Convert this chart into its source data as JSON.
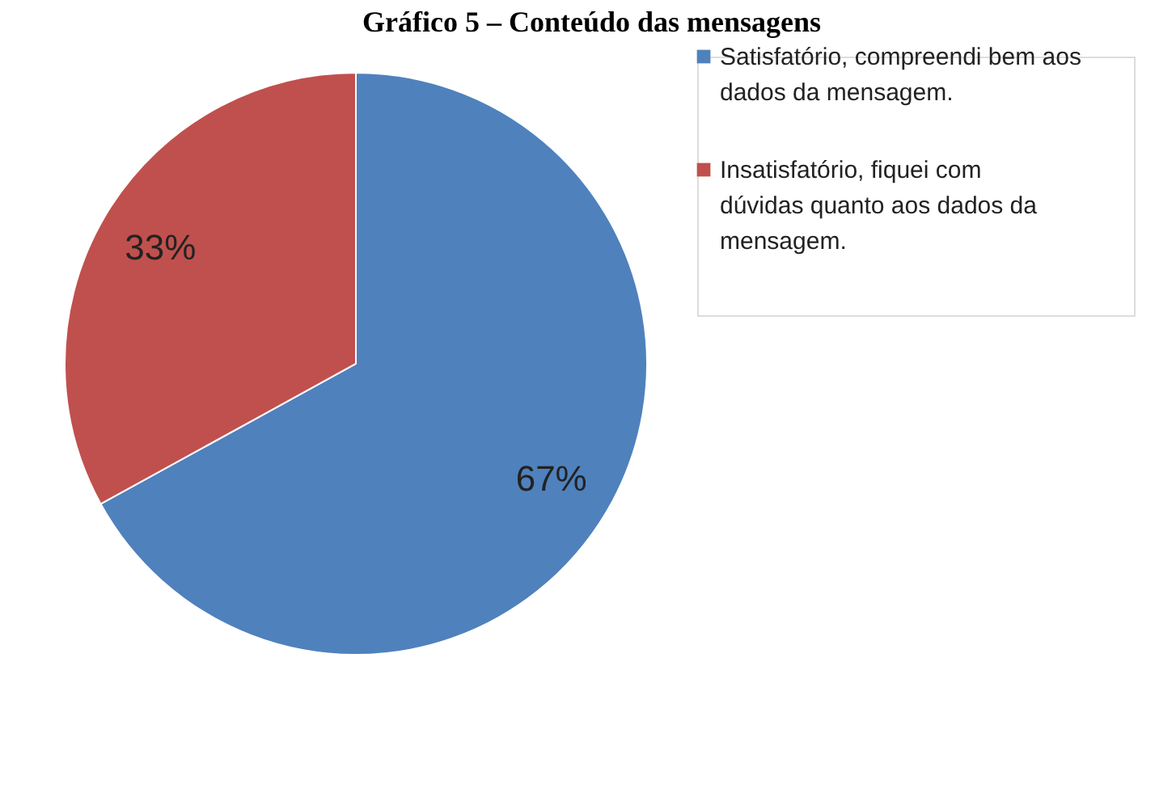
{
  "chart_data": {
    "type": "pie",
    "title": "Gráfico 5 – Conteúdo das mensagens",
    "categories": [
      "Satisfatório, compreendi bem aos dados da mensagem.",
      "Insatisfatório, fiquei com dúvidas quanto aos dados da mensagem."
    ],
    "values": [
      67,
      33
    ],
    "colors": [
      "#4f81bd",
      "#c0504d"
    ],
    "value_labels": [
      "67%",
      "33%"
    ],
    "legend": "right"
  }
}
